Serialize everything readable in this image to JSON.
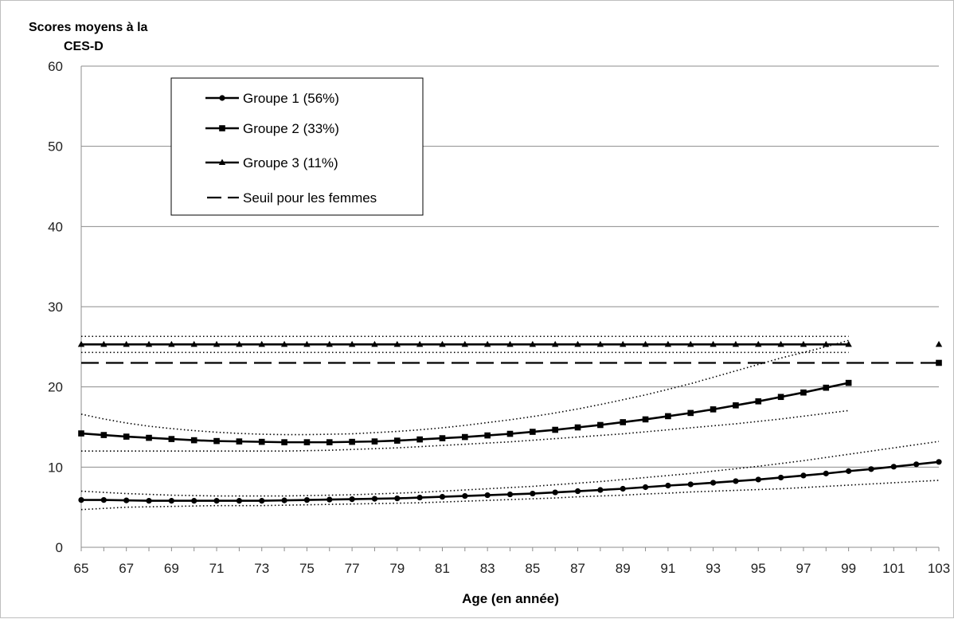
{
  "chart_data": {
    "type": "line",
    "title": "",
    "ylabel_line1": "Scores moyens à la",
    "ylabel_line2": "CES-D",
    "xlabel": "Age (en année)",
    "xlim": [
      65,
      103
    ],
    "ylim": [
      0,
      60
    ],
    "x_ticks": [
      65,
      67,
      69,
      71,
      73,
      75,
      77,
      79,
      81,
      83,
      85,
      87,
      89,
      91,
      93,
      95,
      97,
      99,
      101,
      103
    ],
    "y_ticks": [
      0,
      10,
      20,
      30,
      40,
      50,
      60
    ],
    "grid": "horizontal",
    "legend_position": "top-left",
    "series": [
      {
        "name": "Groupe 1 (56%)",
        "marker": "circle",
        "x": [
          65,
          66,
          67,
          68,
          69,
          70,
          71,
          72,
          73,
          74,
          75,
          76,
          77,
          78,
          79,
          80,
          81,
          82,
          83,
          84,
          85,
          86,
          87,
          88,
          89,
          90,
          91,
          92,
          93,
          94,
          95,
          96,
          97,
          98,
          99,
          100,
          101,
          102,
          103
        ],
        "y": [
          5.9,
          5.9,
          5.85,
          5.8,
          5.8,
          5.8,
          5.8,
          5.8,
          5.8,
          5.85,
          5.9,
          5.95,
          6.0,
          6.05,
          6.1,
          6.2,
          6.3,
          6.4,
          6.5,
          6.6,
          6.7,
          6.85,
          7.0,
          7.15,
          7.3,
          7.5,
          7.7,
          7.85,
          8.05,
          8.25,
          8.45,
          8.7,
          8.95,
          9.2,
          9.5,
          9.75,
          10.05,
          10.35,
          10.65
        ],
        "ci_upper": [
          7.0,
          6.85,
          6.7,
          6.6,
          6.5,
          6.45,
          6.4,
          6.4,
          6.4,
          6.4,
          6.45,
          6.5,
          6.55,
          6.65,
          6.75,
          6.85,
          7.0,
          7.15,
          7.3,
          7.45,
          7.6,
          7.8,
          8.0,
          8.2,
          8.45,
          8.7,
          8.95,
          9.2,
          9.5,
          9.8,
          10.1,
          10.45,
          10.8,
          11.2,
          11.6,
          12.0,
          12.4,
          12.8,
          13.2
        ],
        "ci_lower": [
          4.7,
          4.85,
          5.0,
          5.05,
          5.1,
          5.15,
          5.2,
          5.2,
          5.2,
          5.25,
          5.3,
          5.35,
          5.4,
          5.45,
          5.5,
          5.55,
          5.65,
          5.75,
          5.85,
          5.95,
          6.05,
          6.15,
          6.3,
          6.4,
          6.5,
          6.65,
          6.75,
          6.9,
          7.0,
          7.1,
          7.2,
          7.3,
          7.45,
          7.6,
          7.75,
          7.9,
          8.05,
          8.2,
          8.35
        ]
      },
      {
        "name": "Groupe 2 (33%)",
        "marker": "square",
        "x": [
          65,
          66,
          67,
          68,
          69,
          70,
          71,
          72,
          73,
          74,
          75,
          76,
          77,
          78,
          79,
          80,
          81,
          82,
          83,
          84,
          85,
          86,
          87,
          88,
          89,
          90,
          91,
          92,
          93,
          94,
          95,
          96,
          97,
          98,
          99
        ],
        "y": [
          14.2,
          14.0,
          13.8,
          13.65,
          13.5,
          13.35,
          13.25,
          13.2,
          13.15,
          13.1,
          13.1,
          13.1,
          13.15,
          13.2,
          13.3,
          13.45,
          13.6,
          13.75,
          13.95,
          14.15,
          14.4,
          14.65,
          14.95,
          15.25,
          15.6,
          15.95,
          16.35,
          16.75,
          17.2,
          17.7,
          18.2,
          18.75,
          19.3,
          19.9,
          20.5
        ],
        "ci_upper": [
          16.6,
          16.0,
          15.5,
          15.1,
          14.8,
          14.55,
          14.35,
          14.2,
          14.1,
          14.05,
          14.05,
          14.1,
          14.15,
          14.3,
          14.45,
          14.65,
          14.9,
          15.2,
          15.55,
          15.9,
          16.3,
          16.75,
          17.25,
          17.8,
          18.4,
          19.0,
          19.7,
          20.4,
          21.2,
          22.0,
          22.8,
          23.6,
          24.3,
          25.0,
          25.8
        ],
        "ci_lower": [
          12.0,
          12.0,
          12.0,
          12.0,
          12.0,
          12.0,
          12.0,
          12.0,
          12.0,
          12.0,
          12.05,
          12.1,
          12.2,
          12.3,
          12.4,
          12.55,
          12.7,
          12.85,
          13.0,
          13.15,
          13.35,
          13.55,
          13.75,
          13.95,
          14.15,
          14.4,
          14.65,
          14.9,
          15.15,
          15.4,
          15.7,
          16.0,
          16.35,
          16.7,
          17.05
        ]
      },
      {
        "name": "Groupe 3 (11%)",
        "marker": "triangle",
        "x": [
          65,
          66,
          67,
          68,
          69,
          70,
          71,
          72,
          73,
          74,
          75,
          76,
          77,
          78,
          79,
          80,
          81,
          82,
          83,
          84,
          85,
          86,
          87,
          88,
          89,
          90,
          91,
          92,
          93,
          94,
          95,
          96,
          97,
          98,
          99
        ],
        "y": [
          25.3,
          25.3,
          25.3,
          25.3,
          25.3,
          25.3,
          25.3,
          25.3,
          25.3,
          25.3,
          25.3,
          25.3,
          25.3,
          25.3,
          25.3,
          25.3,
          25.3,
          25.3,
          25.3,
          25.3,
          25.3,
          25.3,
          25.3,
          25.3,
          25.3,
          25.3,
          25.3,
          25.3,
          25.3,
          25.3,
          25.3,
          25.3,
          25.3,
          25.3,
          25.3
        ],
        "ci_upper": 26.3,
        "ci_lower": 24.3,
        "extra_point": {
          "x": 103,
          "y": 25.3
        }
      },
      {
        "name": "Seuil pour les femmes",
        "marker": "none",
        "style": "dashed",
        "x": [
          65,
          103
        ],
        "y": [
          23,
          23
        ],
        "end_marker": {
          "x": 103,
          "y": 23,
          "marker": "square"
        }
      }
    ]
  }
}
